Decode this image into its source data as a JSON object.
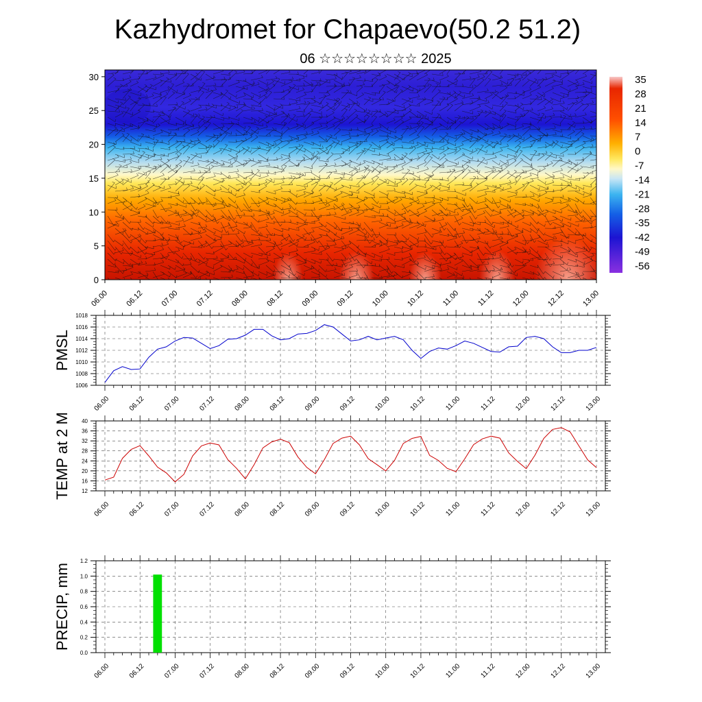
{
  "header": {
    "title": "Kazhydromet for Chapaevo(50.2 51.2)",
    "subtitle": "06 ☆☆☆☆☆☆☆☆ 2025"
  },
  "time_ticks": [
    "06.00",
    "06.12",
    "07.00",
    "07.12",
    "08.00",
    "08.12",
    "09.00",
    "09.12",
    "10.00",
    "10.12",
    "11.00",
    "11.12",
    "12.00",
    "12.12",
    "13.00"
  ],
  "chart_data": [
    {
      "type": "heatmap",
      "title": "",
      "xlabel": "",
      "ylabel": "",
      "y_ticks": [
        "0",
        "5",
        "10",
        "15",
        "20",
        "25",
        "30"
      ],
      "ylim": [
        0,
        31
      ],
      "colorbar": {
        "labels": [
          "35",
          "28",
          "21",
          "14",
          "7",
          "0",
          "-7",
          "-14",
          "-21",
          "-28",
          "-35",
          "-42",
          "-49",
          "-56"
        ],
        "range": [
          -60,
          40
        ]
      },
      "overlay": "wind barbs",
      "colors": {
        "hot": "#ff2000",
        "cold": "#2020ff"
      }
    },
    {
      "type": "line",
      "ylabel": "PMSL",
      "ylim": [
        1006,
        1018
      ],
      "y_ticks": [
        "1006",
        "1008",
        "1010",
        "1012",
        "1014",
        "1016",
        "1018"
      ],
      "color": "#0000cc",
      "x": [
        0,
        3,
        6,
        9,
        12,
        15,
        18,
        21,
        24,
        27,
        30,
        33,
        36,
        39,
        42,
        45,
        48,
        51,
        54,
        57,
        60,
        63,
        66,
        69,
        72,
        75,
        78,
        81,
        84,
        87,
        90,
        93,
        96,
        99,
        102,
        105,
        108,
        111,
        114,
        117,
        120,
        123,
        126,
        129,
        132,
        135,
        138,
        141,
        144,
        147,
        150,
        153,
        156,
        159,
        162,
        165,
        168
      ],
      "values": [
        1006.5,
        1008.5,
        1009.2,
        1008.7,
        1008.8,
        1010.8,
        1012.2,
        1012.6,
        1013.6,
        1014.2,
        1014.1,
        1013.2,
        1012.3,
        1012.8,
        1013.9,
        1014.0,
        1014.6,
        1015.6,
        1015.6,
        1014.5,
        1013.8,
        1014.0,
        1014.8,
        1014.9,
        1015.4,
        1016.4,
        1016.0,
        1014.8,
        1013.6,
        1013.8,
        1014.4,
        1013.8,
        1014.1,
        1014.4,
        1013.8,
        1012.0,
        1010.6,
        1011.8,
        1012.4,
        1012.2,
        1012.8,
        1013.6,
        1013.2,
        1012.5,
        1011.8,
        1011.7,
        1012.6,
        1012.7,
        1014.2,
        1014.4,
        1014.0,
        1012.6,
        1011.6,
        1011.6,
        1012.0,
        1012.0,
        1012.5
      ]
    },
    {
      "type": "line",
      "ylabel": "TEMP at 2 M",
      "ylim": [
        12,
        40
      ],
      "y_ticks": [
        "12",
        "16",
        "20",
        "24",
        "28",
        "32",
        "36",
        "40"
      ],
      "color": "#cc0000",
      "x": [
        0,
        3,
        6,
        9,
        12,
        15,
        18,
        21,
        24,
        27,
        30,
        33,
        36,
        39,
        42,
        45,
        48,
        51,
        54,
        57,
        60,
        63,
        66,
        69,
        72,
        75,
        78,
        81,
        84,
        87,
        90,
        93,
        96,
        99,
        102,
        105,
        108,
        111,
        114,
        117,
        120,
        123,
        126,
        129,
        132,
        135,
        138,
        141,
        144,
        147,
        150,
        153,
        156,
        159,
        162,
        165,
        168
      ],
      "values": [
        16.3,
        17.5,
        25.0,
        28.6,
        30.1,
        26.0,
        21.5,
        19.2,
        15.6,
        18.6,
        26.0,
        30.0,
        31.2,
        30.4,
        24.5,
        21.0,
        16.8,
        22.5,
        29.2,
        31.6,
        32.7,
        31.3,
        25.5,
        21.4,
        18.8,
        24.5,
        31.0,
        33.1,
        33.9,
        30.4,
        24.9,
        22.5,
        20.0,
        24.2,
        31.0,
        33.0,
        33.8,
        26.2,
        24.2,
        21.0,
        19.7,
        24.8,
        30.5,
        32.8,
        33.9,
        33.1,
        27.2,
        23.8,
        20.9,
        26.3,
        33.0,
        36.6,
        37.3,
        35.6,
        30.0,
        24.4,
        21.3
      ]
    },
    {
      "type": "bar",
      "ylabel": "PRECIP, mm",
      "ylim": [
        0,
        1.2
      ],
      "y_ticks": [
        "0.0",
        "0.2",
        "0.4",
        "0.6",
        "0.8",
        "1.0",
        "1.2"
      ],
      "color": "#00e000",
      "bars": [
        {
          "x": 18,
          "width": 3,
          "value": 1.02
        }
      ]
    }
  ]
}
